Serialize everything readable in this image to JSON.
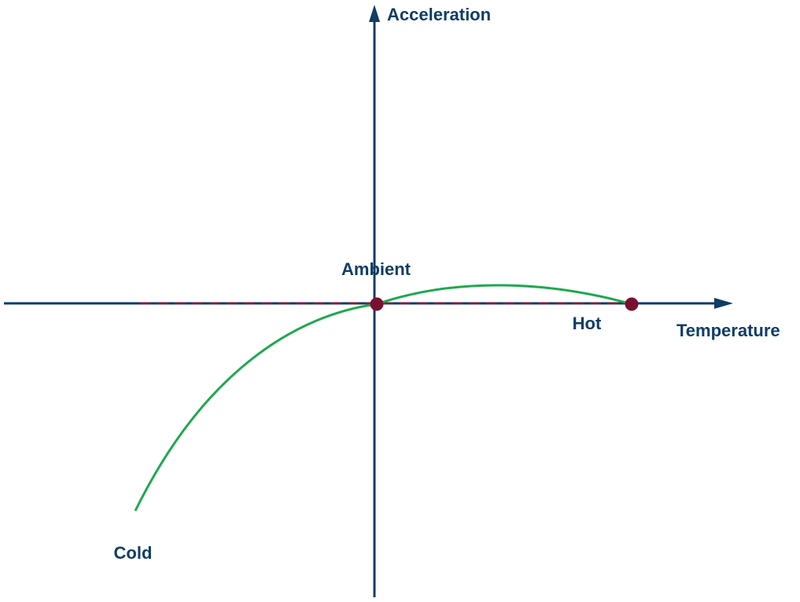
{
  "axes": {
    "y_label": "Acceleration",
    "x_label": "Temperature"
  },
  "points": [
    {
      "label": "Ambient"
    },
    {
      "label": "Hot"
    },
    {
      "label": "Cold"
    }
  ]
}
